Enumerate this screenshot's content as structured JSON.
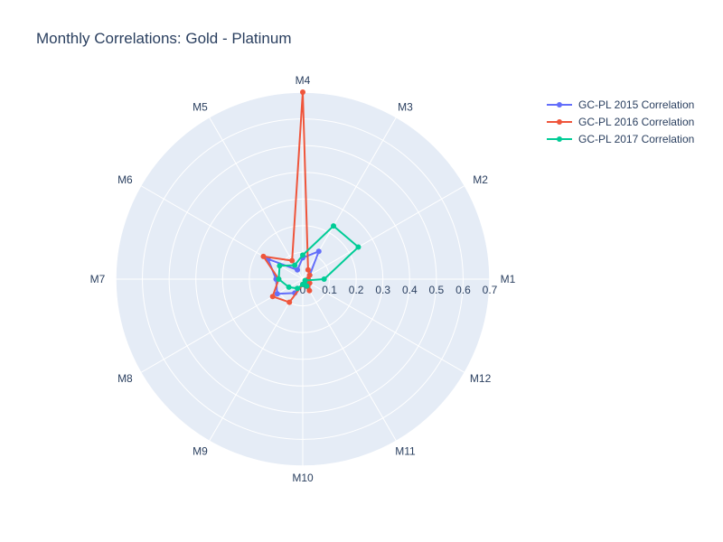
{
  "chart_data": {
    "type": "polar-line",
    "title": "Monthly Correlations: Gold - Platinum",
    "angular_categories": [
      "M1",
      "M2",
      "M3",
      "M4",
      "M5",
      "M6",
      "M7",
      "M8",
      "M9",
      "M10",
      "M11",
      "M12"
    ],
    "radial_range": [
      0,
      0.7
    ],
    "radial_ticks": [
      "0",
      "0.1",
      "0.2",
      "0.3",
      "0.4",
      "0.5",
      "0.6",
      "0.7"
    ],
    "grid": true,
    "legend_position": "top-right",
    "series": [
      {
        "name": "GC-PL 2015 Correlation",
        "color": "#636efa",
        "values": [
          0.02,
          0.03,
          0.12,
          0.08,
          0.04,
          0.15,
          0.1,
          0.11,
          0.06,
          0.02,
          0.03,
          0.02
        ]
      },
      {
        "name": "GC-PL 2016 Correlation",
        "color": "#EF553B",
        "values": [
          0.02,
          0.03,
          0.04,
          0.7,
          0.08,
          0.17,
          0.09,
          0.13,
          0.1,
          0.02,
          0.05,
          0.03
        ]
      },
      {
        "name": "GC-PL 2017 Correlation",
        "color": "#00cc96",
        "values": [
          0.08,
          0.24,
          0.23,
          0.09,
          0.06,
          0.1,
          0.09,
          0.06,
          0.04,
          0.02,
          0.03,
          0.01
        ]
      }
    ]
  }
}
